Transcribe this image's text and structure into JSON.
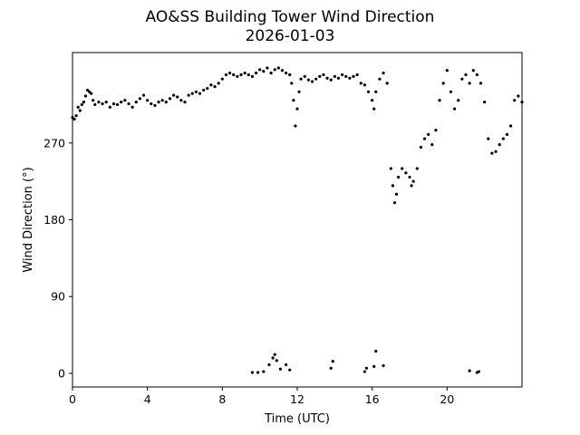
{
  "chart_data": {
    "type": "scatter",
    "title": "AO&SS Building Tower Wind Direction",
    "subtitle": "2026-01-03",
    "xlabel": "Time (UTC)",
    "ylabel": "Wind Direction (°)",
    "xlim": [
      0,
      24
    ],
    "ylim": [
      -16,
      376
    ],
    "xticks": [
      0,
      4,
      8,
      12,
      16,
      20
    ],
    "xtick_labels": [
      "0",
      "4",
      "8",
      "12",
      "16",
      "20"
    ],
    "yticks": [
      0,
      90,
      180,
      270
    ],
    "ytick_labels": [
      "0",
      "90",
      "180",
      "270"
    ],
    "grid": false,
    "legend": "none",
    "marker_color": "#000000",
    "series": [
      {
        "points": [
          [
            0.0,
            300
          ],
          [
            0.1,
            298
          ],
          [
            0.2,
            302
          ],
          [
            0.3,
            312
          ],
          [
            0.4,
            308
          ],
          [
            0.5,
            315
          ],
          [
            0.6,
            318
          ],
          [
            0.7,
            325
          ],
          [
            0.8,
            332
          ],
          [
            0.9,
            330
          ],
          [
            1.0,
            328
          ],
          [
            1.1,
            320
          ],
          [
            1.2,
            315
          ],
          [
            1.4,
            318
          ],
          [
            1.6,
            316
          ],
          [
            1.8,
            318
          ],
          [
            2.0,
            312
          ],
          [
            2.2,
            316
          ],
          [
            2.4,
            315
          ],
          [
            2.6,
            318
          ],
          [
            2.8,
            320
          ],
          [
            3.0,
            316
          ],
          [
            3.2,
            312
          ],
          [
            3.4,
            318
          ],
          [
            3.6,
            322
          ],
          [
            3.8,
            326
          ],
          [
            4.0,
            320
          ],
          [
            4.2,
            316
          ],
          [
            4.4,
            314
          ],
          [
            4.6,
            318
          ],
          [
            4.8,
            320
          ],
          [
            5.0,
            318
          ],
          [
            5.2,
            322
          ],
          [
            5.4,
            326
          ],
          [
            5.6,
            324
          ],
          [
            5.8,
            320
          ],
          [
            6.0,
            318
          ],
          [
            6.2,
            326
          ],
          [
            6.4,
            328
          ],
          [
            6.6,
            330
          ],
          [
            6.8,
            328
          ],
          [
            7.0,
            332
          ],
          [
            7.2,
            334
          ],
          [
            7.4,
            338
          ],
          [
            7.6,
            336
          ],
          [
            7.8,
            340
          ],
          [
            8.0,
            345
          ],
          [
            8.2,
            350
          ],
          [
            8.4,
            352
          ],
          [
            8.6,
            350
          ],
          [
            8.8,
            348
          ],
          [
            9.0,
            350
          ],
          [
            9.2,
            352
          ],
          [
            9.4,
            350
          ],
          [
            9.6,
            348
          ],
          [
            9.8,
            352
          ],
          [
            10.0,
            356
          ],
          [
            10.2,
            354
          ],
          [
            10.4,
            358
          ],
          [
            10.6,
            352
          ],
          [
            10.8,
            356
          ],
          [
            11.0,
            358
          ],
          [
            11.2,
            355
          ],
          [
            11.4,
            352
          ],
          [
            11.6,
            350
          ],
          [
            11.7,
            340
          ],
          [
            11.8,
            320
          ],
          [
            11.9,
            290
          ],
          [
            12.0,
            310
          ],
          [
            12.1,
            330
          ],
          [
            12.2,
            345
          ],
          [
            12.4,
            348
          ],
          [
            12.6,
            344
          ],
          [
            12.8,
            342
          ],
          [
            13.0,
            345
          ],
          [
            13.2,
            348
          ],
          [
            13.4,
            350
          ],
          [
            13.6,
            346
          ],
          [
            13.8,
            344
          ],
          [
            14.0,
            348
          ],
          [
            14.2,
            346
          ],
          [
            14.4,
            350
          ],
          [
            14.6,
            348
          ],
          [
            14.8,
            346
          ],
          [
            15.0,
            348
          ],
          [
            15.2,
            350
          ],
          [
            15.4,
            340
          ],
          [
            15.6,
            338
          ],
          [
            15.8,
            330
          ],
          [
            16.0,
            320
          ],
          [
            16.1,
            310
          ],
          [
            16.2,
            330
          ],
          [
            16.4,
            345
          ],
          [
            16.6,
            352
          ],
          [
            16.8,
            340
          ],
          [
            17.0,
            240
          ],
          [
            17.1,
            220
          ],
          [
            17.2,
            200
          ],
          [
            17.3,
            210
          ],
          [
            17.4,
            230
          ],
          [
            17.6,
            240
          ],
          [
            17.8,
            235
          ],
          [
            18.0,
            230
          ],
          [
            18.1,
            220
          ],
          [
            18.2,
            225
          ],
          [
            18.4,
            240
          ],
          [
            18.6,
            265
          ],
          [
            18.8,
            275
          ],
          [
            19.0,
            280
          ],
          [
            19.2,
            268
          ],
          [
            19.4,
            285
          ],
          [
            19.6,
            320
          ],
          [
            19.8,
            340
          ],
          [
            20.0,
            355
          ],
          [
            20.2,
            330
          ],
          [
            20.4,
            310
          ],
          [
            20.6,
            320
          ],
          [
            20.8,
            345
          ],
          [
            21.0,
            350
          ],
          [
            21.2,
            340
          ],
          [
            21.4,
            355
          ],
          [
            21.6,
            350
          ],
          [
            21.8,
            340
          ],
          [
            22.0,
            318
          ],
          [
            22.2,
            275
          ],
          [
            22.4,
            258
          ],
          [
            22.6,
            260
          ],
          [
            22.8,
            268
          ],
          [
            23.0,
            275
          ],
          [
            23.2,
            280
          ],
          [
            23.4,
            290
          ],
          [
            23.6,
            320
          ],
          [
            23.8,
            325
          ],
          [
            24.0,
            318
          ],
          [
            9.6,
            1
          ],
          [
            9.9,
            1
          ],
          [
            10.2,
            2
          ],
          [
            10.5,
            10
          ],
          [
            10.7,
            18
          ],
          [
            10.8,
            22
          ],
          [
            10.9,
            15
          ],
          [
            11.1,
            5
          ],
          [
            11.4,
            10
          ],
          [
            11.6,
            4
          ],
          [
            13.8,
            6
          ],
          [
            13.9,
            14
          ],
          [
            15.6,
            2
          ],
          [
            15.7,
            6
          ],
          [
            16.1,
            8
          ],
          [
            16.2,
            26
          ],
          [
            16.6,
            9
          ],
          [
            21.2,
            3
          ],
          [
            21.6,
            1
          ],
          [
            21.7,
            2
          ]
        ]
      }
    ]
  }
}
